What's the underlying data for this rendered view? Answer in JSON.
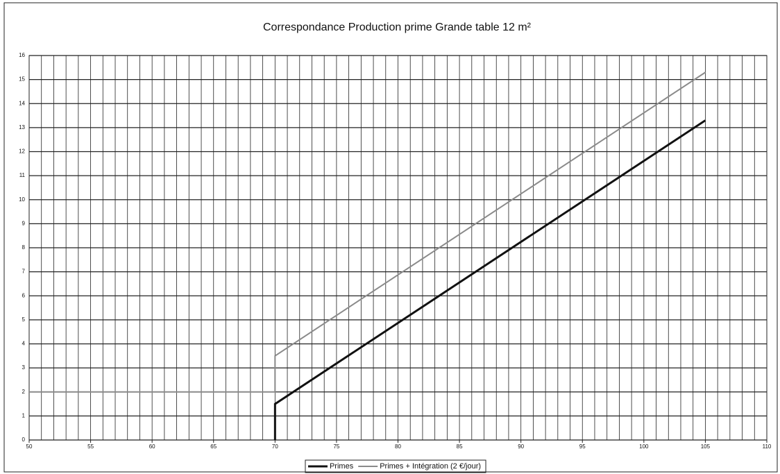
{
  "chart_data": {
    "type": "line",
    "title": "Correspondance Production prime Grande table 12 m²",
    "series": [
      {
        "name": "Primes",
        "color": "#111111",
        "width": 3,
        "x": [
          70,
          70,
          105
        ],
        "values": [
          0,
          1.5,
          13.3
        ]
      },
      {
        "name": "Primes + Intégration (2 €/jour)",
        "color": "#8a8a8a",
        "width": 2,
        "x": [
          50,
          70,
          70,
          105
        ],
        "values": [
          2,
          2,
          3.5,
          15.3
        ]
      }
    ],
    "xlim": [
      50,
      110
    ],
    "xticks": [
      50,
      55,
      60,
      65,
      70,
      75,
      80,
      85,
      90,
      95,
      100,
      105,
      110
    ],
    "ylim": [
      0,
      16
    ],
    "yticks": [
      0,
      1,
      2,
      3,
      4,
      5,
      6,
      7,
      8,
      9,
      10,
      11,
      12,
      13,
      14,
      15,
      16
    ],
    "grid": true,
    "minor_grid_step": 1,
    "legend": "bottom"
  }
}
